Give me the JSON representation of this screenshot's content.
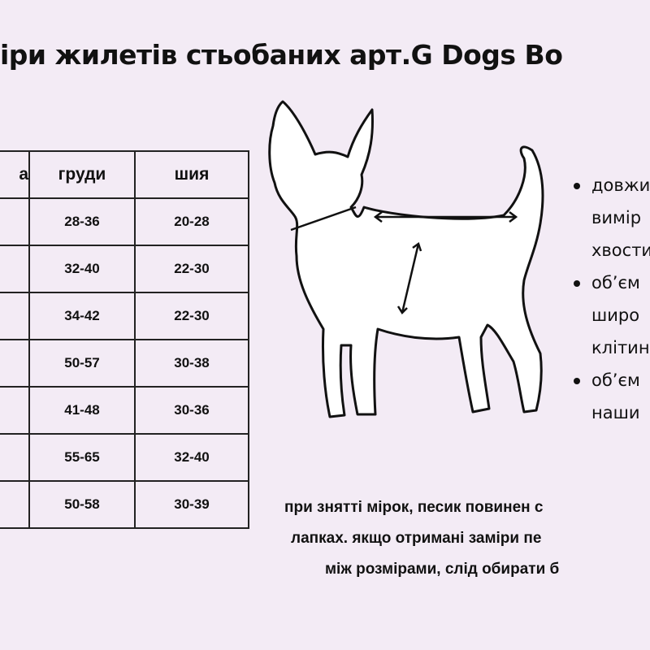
{
  "title": "іри жилетів стьобаних арт.G Dogs Bo",
  "table": {
    "headers": [
      "а",
      "груди",
      "шия"
    ],
    "rows": [
      {
        "chest": "28-36",
        "neck": "20-28"
      },
      {
        "chest": "32-40",
        "neck": "22-30"
      },
      {
        "chest": "34-42",
        "neck": "22-30"
      },
      {
        "chest": "50-57",
        "neck": "30-38"
      },
      {
        "chest": "41-48",
        "neck": "30-36"
      },
      {
        "chest": "55-65",
        "neck": "32-40"
      },
      {
        "chest": "50-58",
        "neck": "30-39"
      }
    ]
  },
  "bullets": [
    {
      "lines": [
        "довжи",
        "вимір",
        "хвости"
      ]
    },
    {
      "lines": [
        "об’єм",
        "широ",
        "клітин"
      ]
    },
    {
      "lines": [
        "об’єм",
        "наши"
      ]
    }
  ],
  "note": [
    "при знятті мірок, песик повинен с",
    "лапках. якщо отримані заміри пе",
    "між розмірами, слід обирати б"
  ]
}
